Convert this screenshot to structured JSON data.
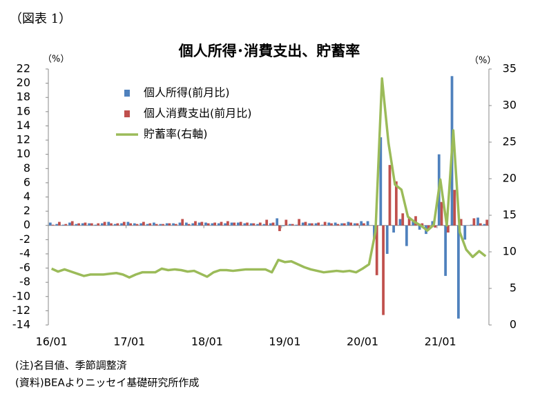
{
  "figure_label": "（図表 1）",
  "notes": [
    "(注)名目値、季節調整済",
    "(資料)BEAよりニッセイ基礎研究所作成"
  ],
  "chart_data": {
    "type": "bar_line",
    "title": "個人所得･消費支出、貯蓄率",
    "y_label": "（%）",
    "y2_label": "（%）",
    "categories": [
      "16/01",
      null,
      null,
      null,
      null,
      null,
      null,
      null,
      null,
      null,
      null,
      null,
      "17/01",
      null,
      null,
      null,
      null,
      null,
      null,
      null,
      null,
      null,
      null,
      null,
      "18/01",
      null,
      null,
      null,
      null,
      null,
      null,
      null,
      null,
      null,
      null,
      null,
      "19/01",
      null,
      null,
      null,
      null,
      null,
      null,
      null,
      null,
      null,
      null,
      null,
      "20/01",
      null,
      null,
      null,
      null,
      null,
      null,
      null,
      null,
      null,
      null,
      null,
      "21/01",
      null,
      null,
      null,
      null,
      null,
      null,
      null
    ],
    "ylim": [
      -14,
      22
    ],
    "yticks": [
      -14,
      -12,
      -10,
      -8,
      -6,
      -4,
      -2,
      0,
      2,
      4,
      6,
      8,
      10,
      12,
      14,
      16,
      18,
      20,
      22
    ],
    "y2lim": [
      0,
      35
    ],
    "y2ticks": [
      0,
      5,
      10,
      15,
      20,
      25,
      30,
      35
    ],
    "legend": "upper-left",
    "series": [
      {
        "name": "個人所得(前月比)",
        "color": "#4f81bd",
        "kind": "bar",
        "values": [
          0.4,
          0.2,
          0.1,
          0.4,
          0.2,
          0.3,
          0.3,
          0.1,
          0.3,
          0.5,
          0.2,
          0.3,
          0.5,
          0.3,
          0.3,
          0.2,
          0.4,
          0.2,
          0.3,
          0.3,
          0.4,
          0.4,
          0.3,
          0.4,
          0.4,
          0.3,
          0.3,
          0.3,
          0.4,
          0.4,
          0.3,
          0.3,
          0.2,
          0.2,
          0.3,
          1.0,
          -0.1,
          0.2,
          0.1,
          0.4,
          0.3,
          0.3,
          0.1,
          0.4,
          0.4,
          0.3,
          0.5,
          0.3,
          0.6,
          0.6,
          -1.9,
          12.4,
          -4.0,
          -1.0,
          0.9,
          -2.9,
          0.8,
          -0.6,
          -1.2,
          0.6,
          10.0,
          -7.1,
          21.0,
          -13.1,
          -2.0,
          0.1,
          1.1,
          0.2
        ]
      },
      {
        "name": "個人消費支出(前月比)",
        "color": "#c0504d",
        "kind": "bar",
        "values": [
          0.1,
          0.5,
          0.2,
          0.6,
          0.3,
          0.4,
          0.3,
          0.3,
          0.5,
          0.3,
          0.3,
          0.5,
          0.3,
          0.2,
          0.5,
          0.3,
          0.2,
          0.2,
          0.3,
          0.2,
          0.9,
          0.2,
          0.6,
          0.5,
          0.3,
          0.4,
          0.5,
          0.6,
          0.4,
          0.5,
          0.4,
          0.3,
          0.4,
          0.8,
          0.4,
          -0.8,
          0.8,
          0.2,
          0.9,
          0.5,
          0.3,
          0.4,
          0.5,
          0.3,
          0.2,
          0.3,
          0.4,
          0.3,
          0.3,
          0.0,
          -7.0,
          -12.6,
          8.5,
          6.2,
          1.7,
          1.0,
          1.3,
          0.3,
          -0.6,
          -0.3,
          3.3,
          -1.0,
          5.0,
          0.9,
          0.0,
          1.0,
          0.3,
          0.8
        ]
      },
      {
        "name": "貯蓄率(右軸)",
        "color": "#9bbb59",
        "kind": "line",
        "axis": "y2",
        "values": [
          7.7,
          7.3,
          7.6,
          7.3,
          7.0,
          6.7,
          6.9,
          6.9,
          6.9,
          7.0,
          7.1,
          6.9,
          6.5,
          6.9,
          7.2,
          7.2,
          7.2,
          7.7,
          7.5,
          7.6,
          7.5,
          7.3,
          7.4,
          7.0,
          6.6,
          7.2,
          7.5,
          7.5,
          7.4,
          7.5,
          7.6,
          7.6,
          7.6,
          7.6,
          7.2,
          8.9,
          8.6,
          8.7,
          8.3,
          7.9,
          7.6,
          7.4,
          7.2,
          7.3,
          7.4,
          7.3,
          7.4,
          7.2,
          7.7,
          8.3,
          12.8,
          33.7,
          24.9,
          19.2,
          18.5,
          14.8,
          14.1,
          13.6,
          12.9,
          13.7,
          19.9,
          13.6,
          26.6,
          12.7,
          10.3,
          9.3,
          10.1,
          9.4
        ]
      }
    ]
  }
}
